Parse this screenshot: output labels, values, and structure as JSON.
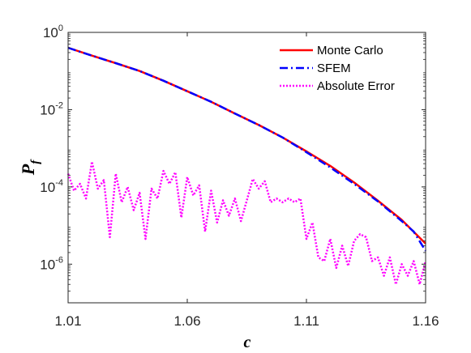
{
  "chart_data": {
    "type": "line",
    "y_scale": "log",
    "grid": false,
    "legend_position": "top-right",
    "xlabel": "c",
    "ylabel": "P",
    "ylabel_subscript": "f",
    "xlim": [
      1.01,
      1.16
    ],
    "ylim": [
      1e-07,
      1
    ],
    "x_ticks": [
      "1.01",
      "1.06",
      "1.11",
      "1.16"
    ],
    "y_ticks": [
      {
        "base": "10",
        "exp": "0",
        "value": 1
      },
      {
        "base": "10",
        "exp": "-2",
        "value": 0.01
      },
      {
        "base": "10",
        "exp": "-4",
        "value": 0.0001
      },
      {
        "base": "10",
        "exp": "-6",
        "value": 1e-06
      }
    ],
    "series": [
      {
        "name": "Monte Carlo",
        "color": "#ff0000",
        "style": "solid",
        "x": [
          1.01,
          1.02,
          1.03,
          1.04,
          1.05,
          1.06,
          1.07,
          1.08,
          1.09,
          1.1,
          1.11,
          1.12,
          1.13,
          1.14,
          1.15,
          1.16
        ],
        "y": [
          0.4,
          0.25,
          0.16,
          0.1,
          0.056,
          0.03,
          0.016,
          0.0079,
          0.004,
          0.0019,
          0.00083,
          0.00035,
          0.00013,
          4.4e-05,
          1.4e-05,
          3.4e-06
        ]
      },
      {
        "name": "SFEM",
        "color": "#0000ff",
        "style": "dashdot",
        "x": [
          1.01,
          1.02,
          1.03,
          1.04,
          1.05,
          1.06,
          1.07,
          1.08,
          1.09,
          1.1,
          1.11,
          1.12,
          1.13,
          1.14,
          1.15,
          1.155,
          1.16
        ],
        "y": [
          0.4,
          0.25,
          0.16,
          0.1,
          0.056,
          0.03,
          0.016,
          0.0079,
          0.004,
          0.0019,
          0.00079,
          0.00032,
          0.00012,
          4.2e-05,
          1.3e-05,
          7e-06,
          2.2e-06
        ]
      },
      {
        "name": "Absolute Error",
        "color": "#ff00ff",
        "style": "dotted",
        "x": [
          1.01,
          1.0125,
          1.015,
          1.0175,
          1.02,
          1.0225,
          1.025,
          1.0275,
          1.03,
          1.0325,
          1.035,
          1.0375,
          1.04,
          1.0425,
          1.045,
          1.0475,
          1.05,
          1.0525,
          1.055,
          1.0575,
          1.06,
          1.0625,
          1.065,
          1.0675,
          1.07,
          1.0725,
          1.075,
          1.0775,
          1.08,
          1.0825,
          1.085,
          1.0875,
          1.09,
          1.0925,
          1.095,
          1.0975,
          1.1,
          1.1025,
          1.105,
          1.1075,
          1.11,
          1.1125,
          1.115,
          1.1175,
          1.12,
          1.1225,
          1.125,
          1.1275,
          1.13,
          1.1325,
          1.135,
          1.1375,
          1.14,
          1.1425,
          1.145,
          1.1475,
          1.15,
          1.1525,
          1.155,
          1.1575,
          1.16
        ],
        "y": [
          0.00022,
          8e-05,
          0.00012,
          5e-05,
          0.00045,
          9e-05,
          0.00015,
          5e-06,
          0.00022,
          4e-05,
          0.0001,
          2.5e-05,
          7e-05,
          4.5e-06,
          9e-05,
          5e-05,
          0.00026,
          0.00012,
          0.00024,
          1.6e-05,
          0.00018,
          6e-05,
          0.00011,
          7e-06,
          8e-05,
          1.2e-05,
          4.5e-05,
          1.8e-05,
          5e-05,
          1.3e-05,
          4.5e-05,
          0.00016,
          9e-05,
          0.00014,
          4e-05,
          5e-05,
          4e-05,
          5e-05,
          4e-05,
          5e-05,
          4.5e-06,
          1.2e-05,
          1.5e-06,
          1.2e-06,
          4.5e-06,
          8e-07,
          3e-06,
          9e-07,
          4e-06,
          6e-06,
          5e-06,
          1.2e-06,
          1.5e-06,
          5e-07,
          1.5e-06,
          3e-07,
          1e-06,
          5e-07,
          1.2e-06,
          3e-07,
          1.2e-06
        ]
      }
    ]
  }
}
